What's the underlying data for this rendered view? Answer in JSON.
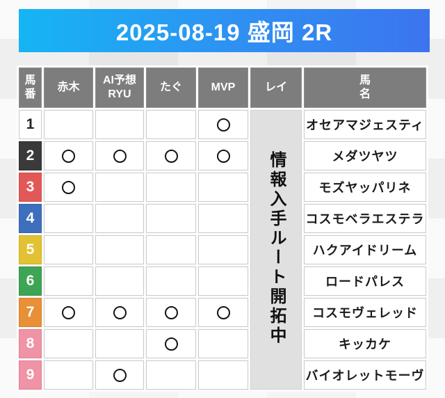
{
  "page": {
    "title": "2025-08-19 盛岡 2R"
  },
  "table": {
    "headers": [
      "馬\n番",
      "赤木",
      "AI予想\nRYU",
      "たぐ",
      "MVP",
      "レイ",
      "馬\n名"
    ],
    "tipster_columns": [
      "赤木",
      "AI予想RYU",
      "たぐ",
      "MVP"
    ],
    "notice": "情報入手ルート開拓中",
    "mark_symbol": "〇",
    "rows": [
      {
        "num": "1",
        "marks": [
          "",
          "",
          "",
          "〇"
        ],
        "name": "オセアマジェスティ"
      },
      {
        "num": "2",
        "marks": [
          "〇",
          "〇",
          "〇",
          "〇"
        ],
        "name": "メダツヤツ"
      },
      {
        "num": "3",
        "marks": [
          "〇",
          "",
          "",
          ""
        ],
        "name": "モズヤッパリネ"
      },
      {
        "num": "4",
        "marks": [
          "",
          "",
          "",
          ""
        ],
        "name": "コスモベラエステラ"
      },
      {
        "num": "5",
        "marks": [
          "",
          "",
          "",
          ""
        ],
        "name": "ハクアイドリーム"
      },
      {
        "num": "6",
        "marks": [
          "",
          "",
          "",
          ""
        ],
        "name": "ロードパレス"
      },
      {
        "num": "7",
        "marks": [
          "〇",
          "〇",
          "〇",
          "〇"
        ],
        "name": "コスモヴェレッド"
      },
      {
        "num": "8",
        "marks": [
          "",
          "",
          "〇",
          ""
        ],
        "name": "キッカケ"
      },
      {
        "num": "9",
        "marks": [
          "",
          "〇",
          "",
          ""
        ],
        "name": "バイオレットモーヴ"
      }
    ]
  },
  "colors": {
    "title_gradient_start": "#16b5f4",
    "title_gradient_end": "#3c74ef",
    "header_bg": "#7d7d7d",
    "notice_bg": "#e0e0e0",
    "waku": {
      "1": "#ffffff",
      "2": "#3a3a3a",
      "3": "#e25858",
      "4": "#3e6fbd",
      "5": "#e2c233",
      "6": "#3da554",
      "7": "#e89036",
      "8": "#ef93a5",
      "9": "#ef93a5"
    }
  }
}
